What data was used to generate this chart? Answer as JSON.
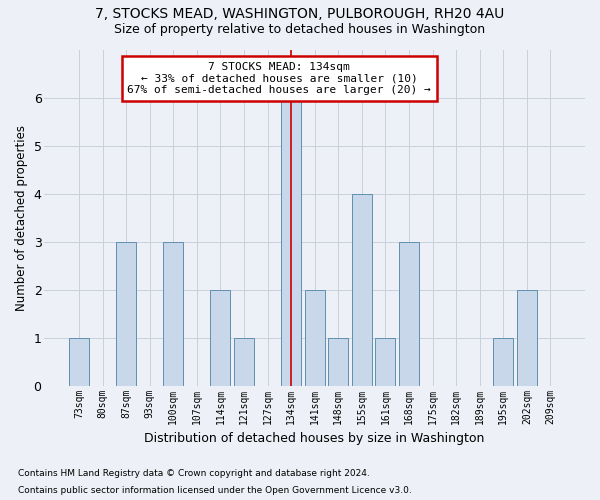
{
  "title1": "7, STOCKS MEAD, WASHINGTON, PULBOROUGH, RH20 4AU",
  "title2": "Size of property relative to detached houses in Washington",
  "xlabel": "Distribution of detached houses by size in Washington",
  "ylabel": "Number of detached properties",
  "categories": [
    "73sqm",
    "80sqm",
    "87sqm",
    "93sqm",
    "100sqm",
    "107sqm",
    "114sqm",
    "121sqm",
    "127sqm",
    "134sqm",
    "141sqm",
    "148sqm",
    "155sqm",
    "161sqm",
    "168sqm",
    "175sqm",
    "182sqm",
    "189sqm",
    "195sqm",
    "202sqm",
    "209sqm"
  ],
  "values": [
    1,
    0,
    3,
    0,
    3,
    0,
    2,
    1,
    0,
    6,
    2,
    1,
    4,
    1,
    3,
    0,
    0,
    0,
    1,
    2,
    0
  ],
  "highlight_index": 9,
  "bar_color": "#c8d8ea",
  "bar_edge_color": "#6090b0",
  "highlight_line_color": "#cc0000",
  "grid_color": "#c8d0dc",
  "background_color": "#edf1f7",
  "annotation_text": "7 STOCKS MEAD: 134sqm\n← 33% of detached houses are smaller (10)\n67% of semi-detached houses are larger (20) →",
  "annotation_box_color": "#ffffff",
  "annotation_border_color": "#cc0000",
  "footnote1": "Contains HM Land Registry data © Crown copyright and database right 2024.",
  "footnote2": "Contains public sector information licensed under the Open Government Licence v3.0.",
  "ylim": [
    0,
    7
  ],
  "yticks": [
    0,
    1,
    2,
    3,
    4,
    5,
    6
  ]
}
